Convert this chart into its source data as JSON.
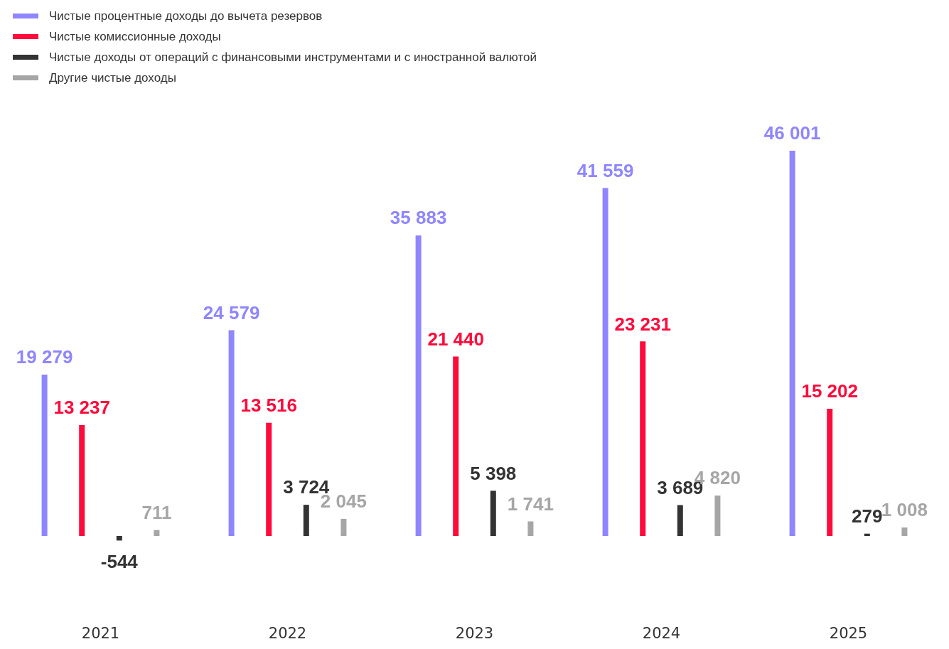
{
  "chart_data": {
    "type": "bar",
    "categories": [
      "2021",
      "2022",
      "2023",
      "2024",
      "2025"
    ],
    "series": [
      {
        "name": "Чистые процентные доходы до вычета резервов",
        "color": "#8f86ff",
        "values": [
          19279,
          24579,
          35883,
          41559,
          46001
        ]
      },
      {
        "name": "Чистые комиссионные доходы",
        "color": "#ff0a3c",
        "values": [
          13237,
          13516,
          21440,
          23231,
          15202
        ]
      },
      {
        "name": "Чистые доходы от операций с финансовыми инструментами и с иностранной валютой",
        "color": "#333333",
        "values": [
          -544,
          3724,
          5398,
          3689,
          279
        ]
      },
      {
        "name": "Другие чистые доходы",
        "color": "#a6a6a6",
        "values": [
          711,
          2045,
          1741,
          4820,
          1008
        ]
      }
    ],
    "data_labels": true,
    "tick_labels": "x",
    "grid": false,
    "legend": "top left"
  }
}
